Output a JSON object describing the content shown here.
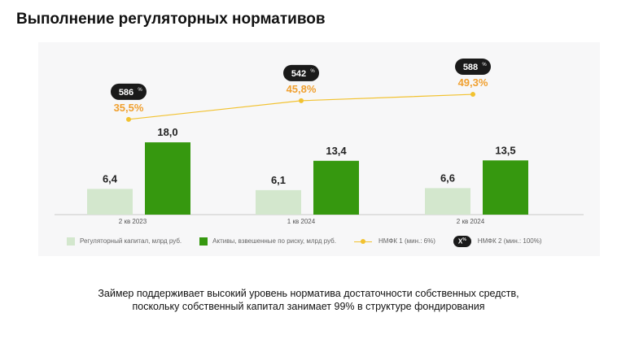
{
  "title": "Выполнение регуляторных нормативов",
  "chart_data": {
    "type": "bar+line",
    "categories": [
      "2 кв 2023",
      "1 кв 2024",
      "2 кв 2024"
    ],
    "series": [
      {
        "name": "Регуляторный капитал, млрд руб.",
        "type": "bar",
        "color": "#d3e7cd",
        "values": [
          6.4,
          6.1,
          6.6
        ],
        "labels": [
          "6,4",
          "6,1",
          "6,6"
        ]
      },
      {
        "name": "Активы, взвешенные по риску, млрд руб.",
        "type": "bar",
        "color": "#36980f",
        "values": [
          18.0,
          13.4,
          13.5
        ],
        "labels": [
          "18,0",
          "13,4",
          "13,5"
        ]
      },
      {
        "name": "НМФК 1 (мин.: 6%)",
        "type": "line",
        "color": "#f2c230",
        "label_color": "#f0a030",
        "values": [
          35.5,
          45.8,
          49.3
        ],
        "labels": [
          "35,5%",
          "45,8%",
          "49,3%"
        ]
      },
      {
        "name": "НМФК 2 (мин.: 100%)",
        "type": "badge",
        "values": [
          586,
          542,
          588
        ],
        "labels": [
          "586",
          "542",
          "588"
        ],
        "unit": "%"
      }
    ],
    "legend_badge": {
      "text": "X",
      "unit": "%"
    },
    "legend_position": "bottom",
    "grid": false
  },
  "footer": {
    "line1": "Займер поддерживает высокий уровень норматива достаточности собственных средств,",
    "line2": "поскольку собственный капитал занимает 99% в структуре фондирования"
  }
}
